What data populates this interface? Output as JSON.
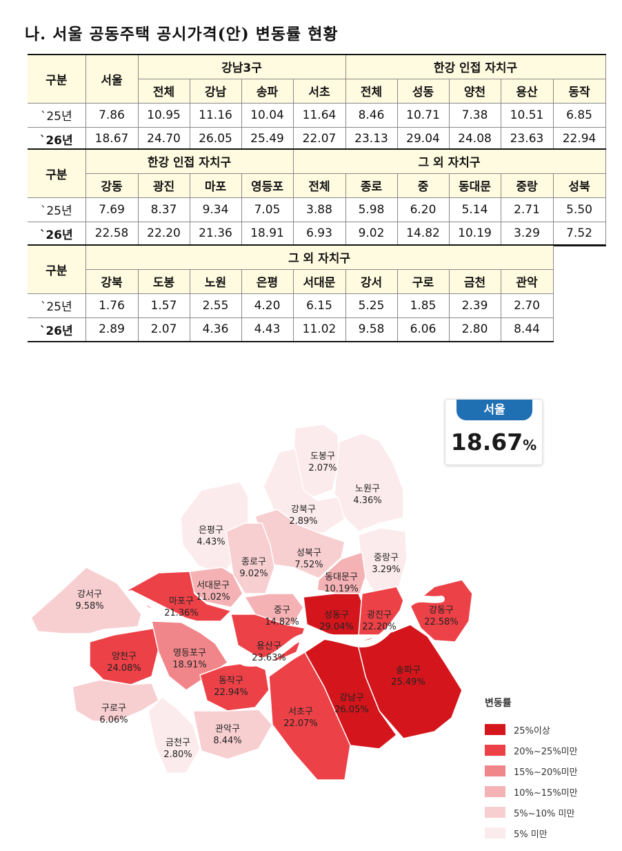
{
  "title": "나. 서울 공동주택 공시가격(안) 변동률 현황",
  "table1": {
    "col_category": "구분",
    "col_seoul": "서울",
    "group_gangnam3": "강남3구",
    "group_hangang": "한강 인접 자치구",
    "subheads": [
      "전체",
      "강남",
      "송파",
      "서초",
      "전체",
      "성동",
      "양천",
      "용산",
      "동작"
    ],
    "rows": [
      {
        "label": "`25년",
        "values": [
          "7.86",
          "10.95",
          "11.16",
          "10.04",
          "11.64",
          "8.46",
          "10.71",
          "7.38",
          "10.51",
          "6.85"
        ]
      },
      {
        "label": "`26년",
        "values": [
          "18.67",
          "24.70",
          "26.05",
          "25.49",
          "22.07",
          "23.13",
          "29.04",
          "24.08",
          "23.63",
          "22.94"
        ]
      }
    ]
  },
  "table2": {
    "col_category": "구분",
    "group_hangang": "한강 인접 자치구",
    "group_others": "그 외 자치구",
    "subheads": [
      "강동",
      "광진",
      "마포",
      "영등포",
      "전체",
      "종로",
      "중",
      "동대문",
      "중랑",
      "성북"
    ],
    "rows": [
      {
        "label": "`25년",
        "values": [
          "7.69",
          "8.37",
          "9.34",
          "7.05",
          "3.88",
          "5.98",
          "6.20",
          "5.14",
          "2.71",
          "5.50"
        ]
      },
      {
        "label": "`26년",
        "values": [
          "22.58",
          "22.20",
          "21.36",
          "18.91",
          "6.93",
          "9.02",
          "14.82",
          "10.19",
          "3.29",
          "7.52"
        ]
      }
    ]
  },
  "table3": {
    "col_category": "구분",
    "group_others": "그 외 자치구",
    "subheads": [
      "강북",
      "도봉",
      "노원",
      "은평",
      "서대문",
      "강서",
      "구로",
      "금천",
      "관악"
    ],
    "rows": [
      {
        "label": "`25년",
        "values": [
          "1.76",
          "1.57",
          "2.55",
          "4.20",
          "6.15",
          "5.25",
          "1.85",
          "2.39",
          "2.70"
        ]
      },
      {
        "label": "`26년",
        "values": [
          "2.89",
          "2.07",
          "4.36",
          "4.43",
          "11.02",
          "9.58",
          "6.06",
          "2.80",
          "8.44"
        ]
      }
    ]
  },
  "seoul_badge": {
    "label": "서울",
    "value": "18.67",
    "unit": "%"
  },
  "legend": {
    "title": "변동률",
    "items": [
      {
        "label": "25%이상",
        "color": "#d4161c"
      },
      {
        "label": "20%~25%미만",
        "color": "#ec4147"
      },
      {
        "label": "15%~20%미만",
        "color": "#f1868a"
      },
      {
        "label": "10%~15%미만",
        "color": "#f5b2b5"
      },
      {
        "label": "5%~10% 미만",
        "color": "#f8cfd1"
      },
      {
        "label": "5% 미만",
        "color": "#fcebec"
      }
    ]
  },
  "districts": [
    {
      "key": "dobong",
      "name": "도봉구",
      "value": "2.07%",
      "color": "#fcebec"
    },
    {
      "key": "nowon",
      "name": "노원구",
      "value": "4.36%",
      "color": "#fcebec"
    },
    {
      "key": "gangbuk",
      "name": "강북구",
      "value": "2.89%",
      "color": "#fcebec"
    },
    {
      "key": "eunpyeong",
      "name": "은평구",
      "value": "4.43%",
      "color": "#fcebec"
    },
    {
      "key": "seongbuk",
      "name": "성북구",
      "value": "7.52%",
      "color": "#f8cfd1"
    },
    {
      "key": "jongno",
      "name": "종로구",
      "value": "9.02%",
      "color": "#f8cfd1"
    },
    {
      "key": "jungnang",
      "name": "중랑구",
      "value": "3.29%",
      "color": "#fcebec"
    },
    {
      "key": "dongdaemun",
      "name": "동대문구",
      "value": "10.19%",
      "color": "#f5b2b5"
    },
    {
      "key": "seodaemun",
      "name": "서대문구",
      "value": "11.02%",
      "color": "#f5b2b5"
    },
    {
      "key": "jung",
      "name": "중구",
      "value": "14.82%",
      "color": "#f5b2b5"
    },
    {
      "key": "mapo",
      "name": "마포구",
      "value": "21.36%",
      "color": "#ec4147"
    },
    {
      "key": "seongdong",
      "name": "성동구",
      "value": "29.04%",
      "color": "#d4161c"
    },
    {
      "key": "gwangjin",
      "name": "광진구",
      "value": "22.20%",
      "color": "#ec4147"
    },
    {
      "key": "gangdong",
      "name": "강동구",
      "value": "22.58%",
      "color": "#ec4147"
    },
    {
      "key": "gangseo",
      "name": "강서구",
      "value": "9.58%",
      "color": "#f8cfd1"
    },
    {
      "key": "yongsan",
      "name": "용산구",
      "value": "23.63%",
      "color": "#ec4147"
    },
    {
      "key": "yangcheon",
      "name": "양천구",
      "value": "24.08%",
      "color": "#ec4147"
    },
    {
      "key": "yeongdeungpo",
      "name": "영등포구",
      "value": "18.91%",
      "color": "#f1868a"
    },
    {
      "key": "songpa",
      "name": "송파구",
      "value": "25.49%",
      "color": "#d4161c"
    },
    {
      "key": "gangnam",
      "name": "강남구",
      "value": "26.05%",
      "color": "#d4161c"
    },
    {
      "key": "dongjak",
      "name": "동작구",
      "value": "22.94%",
      "color": "#ec4147"
    },
    {
      "key": "seocho",
      "name": "서초구",
      "value": "22.07%",
      "color": "#ec4147"
    },
    {
      "key": "guro",
      "name": "구로구",
      "value": "6.06%",
      "color": "#f8cfd1"
    },
    {
      "key": "geumcheon",
      "name": "금천구",
      "value": "2.80%",
      "color": "#fcebec"
    },
    {
      "key": "gwanak",
      "name": "관악구",
      "value": "8.44%",
      "color": "#f8cfd1"
    }
  ]
}
